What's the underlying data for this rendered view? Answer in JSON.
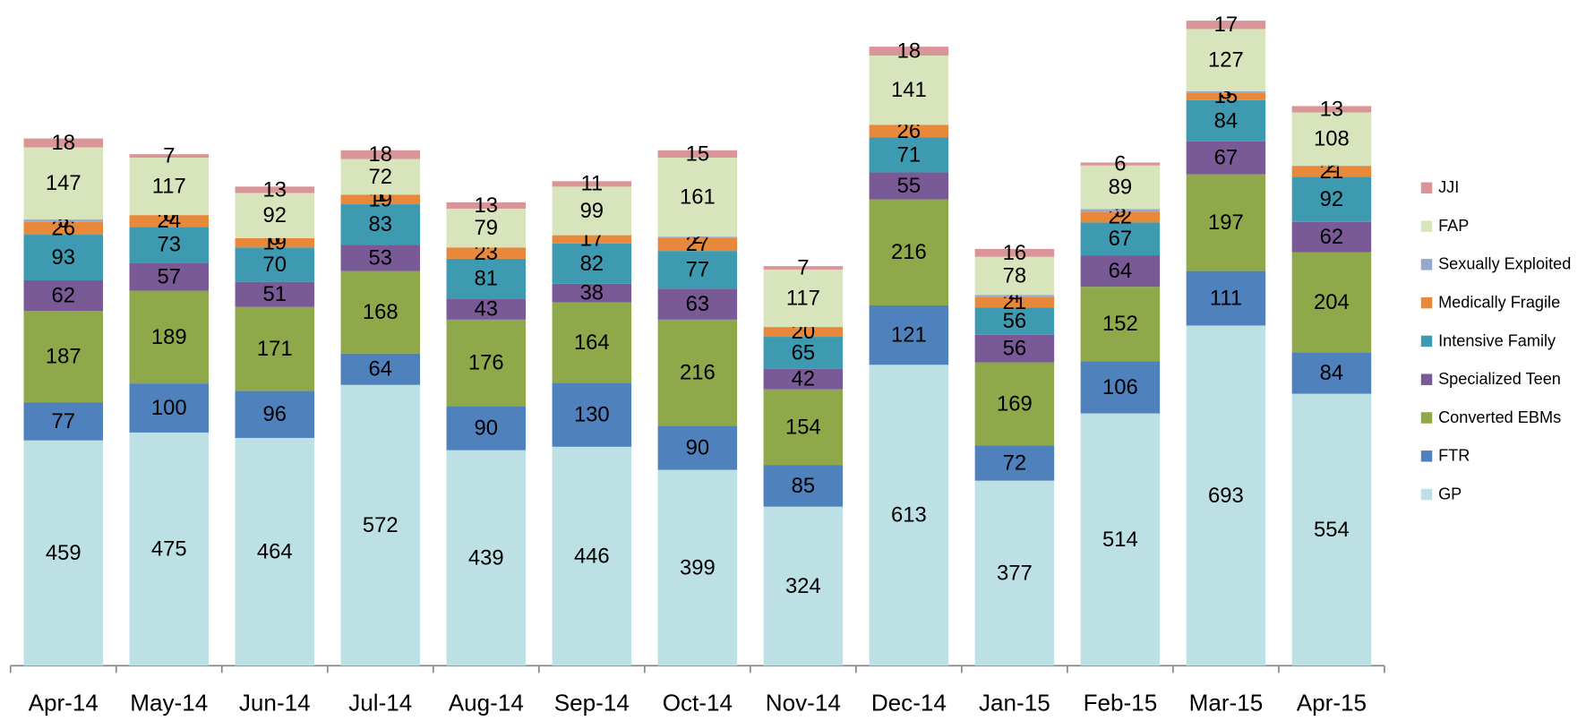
{
  "chart_data": {
    "type": "stacked_bar",
    "categories": [
      "Apr-14",
      "May-14",
      "Jun-14",
      "Jul-14",
      "Aug-14",
      "Sep-14",
      "Oct-14",
      "Nov-14",
      "Dec-14",
      "Jan-15",
      "Feb-15",
      "Mar-15",
      "Apr-15"
    ],
    "series": [
      {
        "name": "GP",
        "color": "#bce0e3",
        "values": [
          459,
          475,
          464,
          572,
          439,
          446,
          399,
          324,
          613,
          377,
          514,
          693,
          554
        ]
      },
      {
        "name": "FTR",
        "color": "#4f81bd",
        "values": [
          77,
          100,
          96,
          64,
          90,
          130,
          90,
          85,
          121,
          72,
          106,
          111,
          84
        ]
      },
      {
        "name": "Converted EBMs",
        "color": "#8ea84a",
        "values": [
          187,
          189,
          171,
          168,
          176,
          164,
          216,
          154,
          216,
          169,
          152,
          197,
          204
        ]
      },
      {
        "name": "Specialized Teen",
        "color": "#7a5a96",
        "values": [
          62,
          57,
          51,
          53,
          43,
          38,
          63,
          42,
          55,
          56,
          64,
          67,
          62
        ]
      },
      {
        "name": "Intensive Family",
        "color": "#3d9ab0",
        "values": [
          93,
          73,
          70,
          83,
          81,
          82,
          77,
          65,
          71,
          56,
          67,
          84,
          92
        ]
      },
      {
        "name": "Medically Fragile",
        "color": "#e8883a",
        "values": [
          26,
          24,
          19,
          19,
          23,
          17,
          27,
          20,
          26,
          21,
          22,
          15,
          21
        ]
      },
      {
        "name": "Sexually Exploited",
        "color": "#93a9cf",
        "values": [
          5,
          0,
          0,
          1,
          null,
          null,
          2,
          null,
          null,
          4,
          5,
          3,
          2
        ]
      },
      {
        "name": "FAP",
        "color": "#d8e4bc",
        "values": [
          147,
          117,
          92,
          72,
          79,
          99,
          161,
          117,
          141,
          78,
          89,
          127,
          108
        ]
      },
      {
        "name": "JJI",
        "color": "#d99597",
        "values": [
          18,
          7,
          13,
          18,
          13,
          11,
          15,
          7,
          18,
          16,
          6,
          17,
          13
        ]
      }
    ],
    "legend": "right"
  }
}
